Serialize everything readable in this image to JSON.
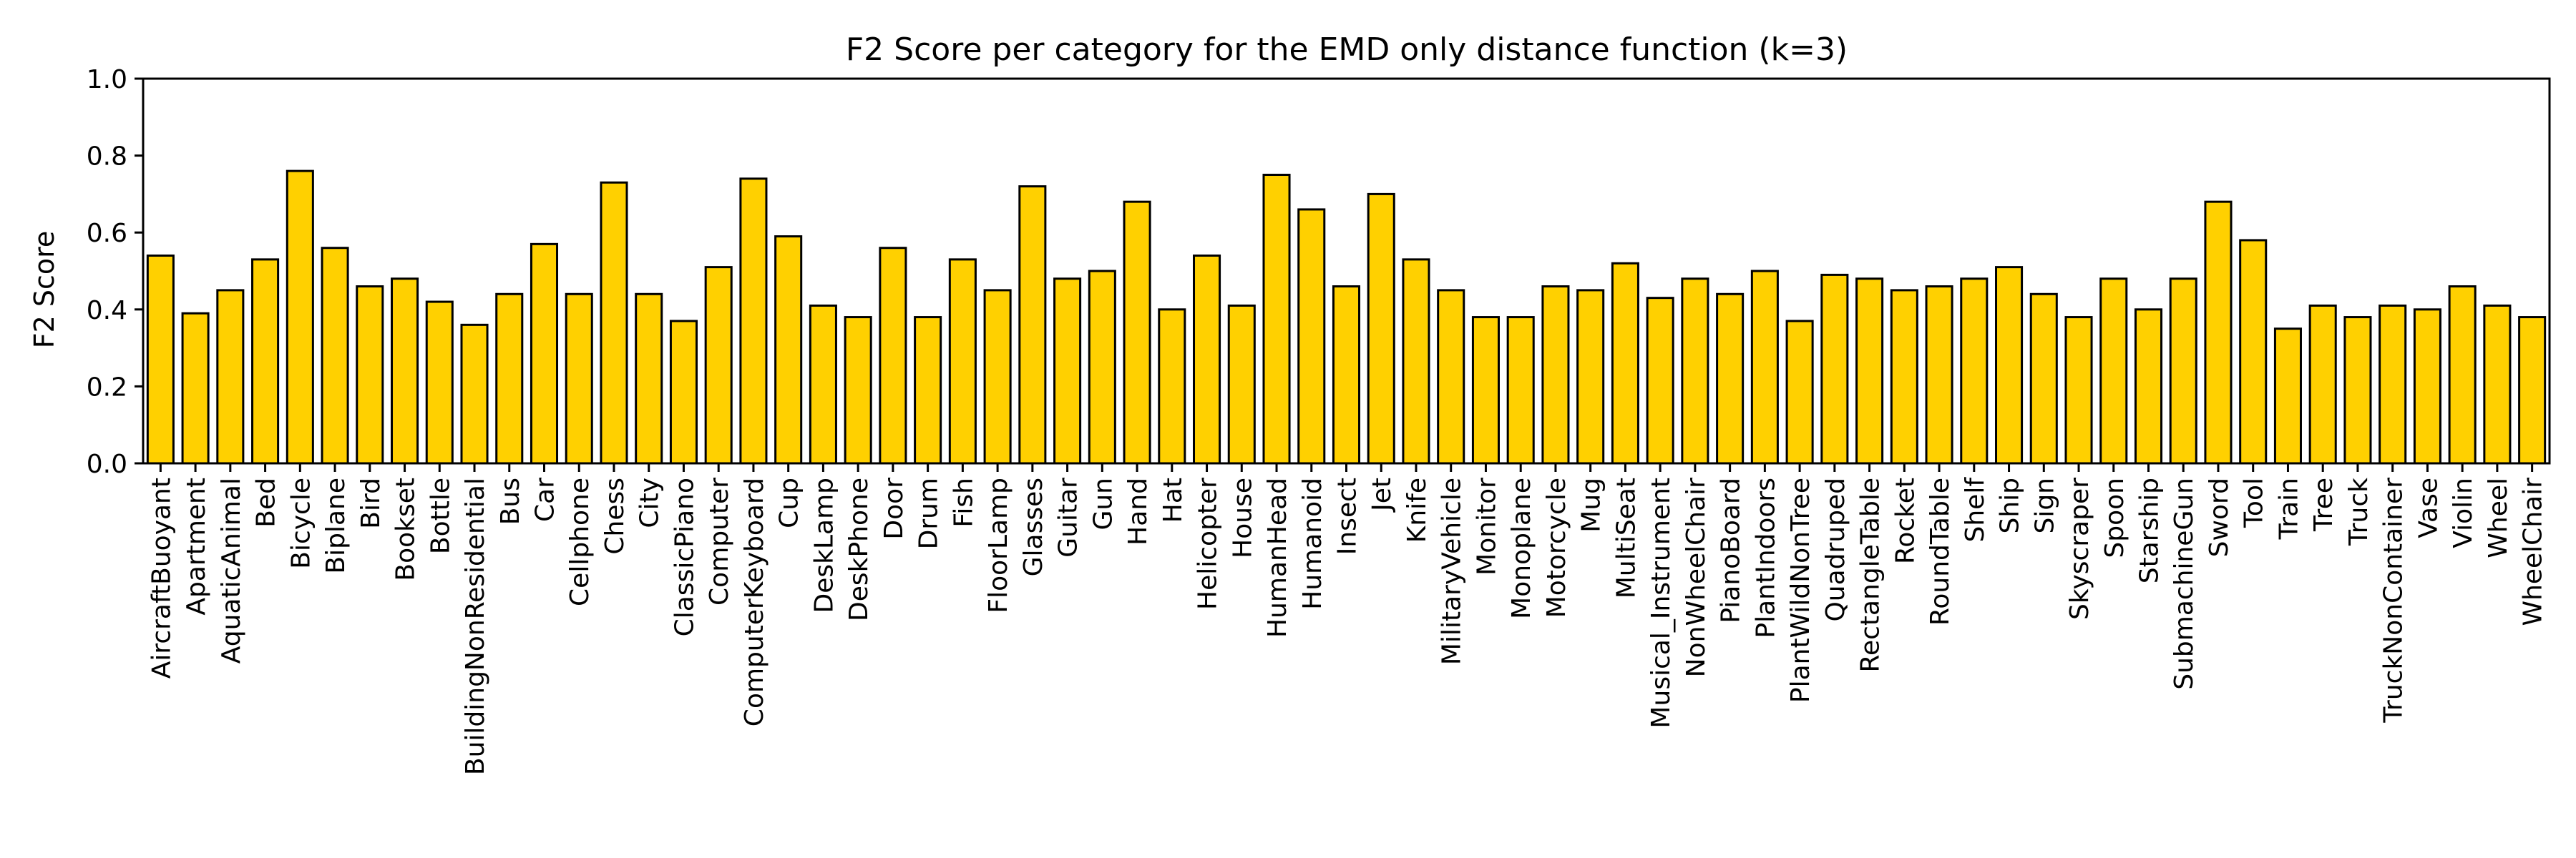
{
  "chart_data": {
    "type": "bar",
    "title": "F2 Score per category for the EMD only distance function (k=3)",
    "xlabel": "",
    "ylabel": "F2 Score",
    "ylim": [
      0,
      1.0
    ],
    "yticks": [
      "0.0",
      "0.2",
      "0.4",
      "0.6",
      "0.8",
      "1.0"
    ],
    "grid": false,
    "bar_color": "#FFD000",
    "edge_color": "#000000",
    "categories": [
      "AircraftBuoyant",
      "Apartment",
      "AquaticAnimal",
      "Bed",
      "Bicycle",
      "Biplane",
      "Bird",
      "Bookset",
      "Bottle",
      "BuildingNonResidential",
      "Bus",
      "Car",
      "Cellphone",
      "Chess",
      "City",
      "ClassicPiano",
      "Computer",
      "ComputerKeyboard",
      "Cup",
      "DeskLamp",
      "DeskPhone",
      "Door",
      "Drum",
      "Fish",
      "FloorLamp",
      "Glasses",
      "Guitar",
      "Gun",
      "Hand",
      "Hat",
      "Helicopter",
      "House",
      "HumanHead",
      "Humanoid",
      "Insect",
      "Jet",
      "Knife",
      "MilitaryVehicle",
      "Monitor",
      "Monoplane",
      "Motorcycle",
      "Mug",
      "MultiSeat",
      "Musical_Instrument",
      "NonWheelChair",
      "PianoBoard",
      "PlantIndoors",
      "PlantWildNonTree",
      "Quadruped",
      "RectangleTable",
      "Rocket",
      "RoundTable",
      "Shelf",
      "Ship",
      "Sign",
      "Skyscraper",
      "Spoon",
      "Starship",
      "SubmachineGun",
      "Sword",
      "Tool",
      "Train",
      "Tree",
      "Truck",
      "TruckNonContainer",
      "Vase",
      "Violin",
      "Wheel",
      "WheelChair"
    ],
    "values": [
      0.54,
      0.39,
      0.45,
      0.53,
      0.76,
      0.56,
      0.46,
      0.48,
      0.42,
      0.36,
      0.44,
      0.57,
      0.44,
      0.73,
      0.44,
      0.37,
      0.51,
      0.74,
      0.59,
      0.41,
      0.38,
      0.56,
      0.38,
      0.53,
      0.45,
      0.72,
      0.48,
      0.5,
      0.68,
      0.4,
      0.54,
      0.41,
      0.75,
      0.66,
      0.46,
      0.7,
      0.53,
      0.45,
      0.38,
      0.38,
      0.46,
      0.45,
      0.52,
      0.43,
      0.48,
      0.44,
      0.5,
      0.37,
      0.49,
      0.48,
      0.45,
      0.46,
      0.48,
      0.51,
      0.44,
      0.38,
      0.48,
      0.4,
      0.48,
      0.68,
      0.58,
      0.35,
      0.41,
      0.38,
      0.41,
      0.4,
      0.46,
      0.41,
      0.38
    ]
  }
}
